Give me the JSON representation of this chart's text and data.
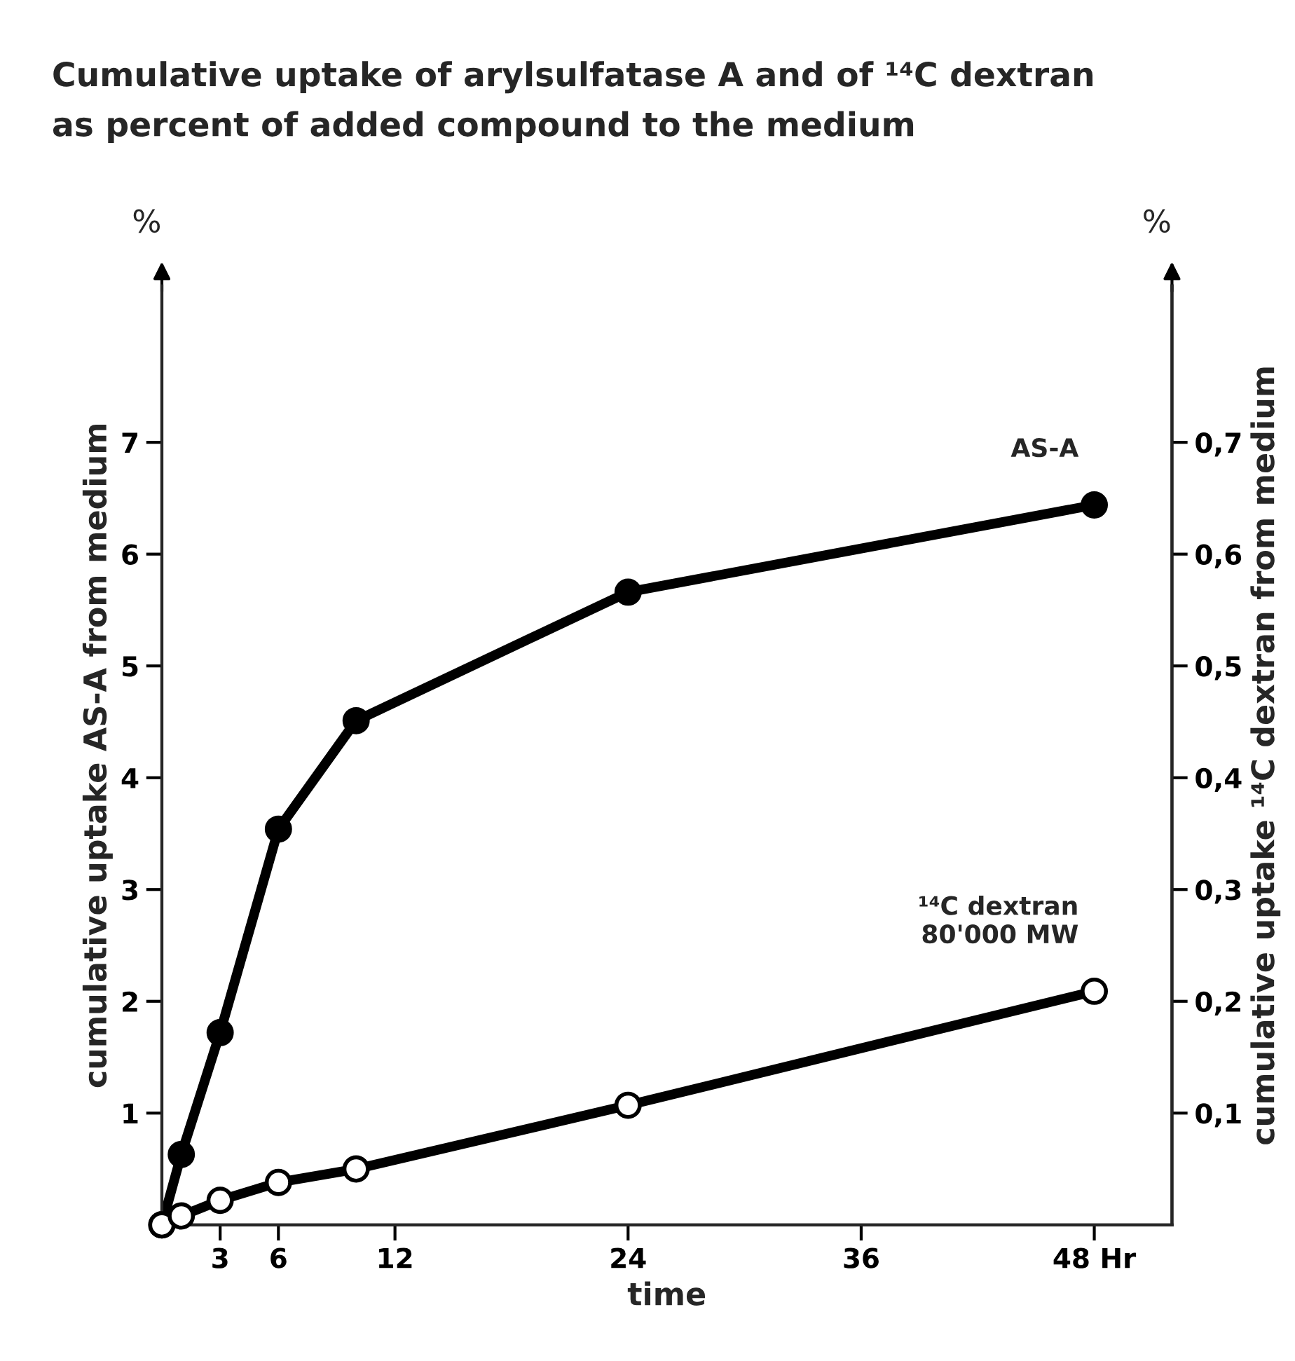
{
  "chart_data": {
    "type": "line",
    "title": "Cumulative uptake of arylsulfatase A and of ¹⁴C dextran\nas percent of added compound to the medium",
    "xlabel": "time",
    "ylabel": "cumulative uptake AS-A from medium",
    "y2label": "cumulative uptake ¹⁴C dextran from medium",
    "x": [
      0,
      1,
      3,
      6,
      10,
      24,
      48
    ],
    "series": [
      {
        "name": "AS-A",
        "color": "#000000",
        "values": [
          0,
          0.63,
          1.72,
          3.54,
          4.51,
          5.66,
          6.44
        ]
      },
      {
        "name": "¹⁴C dextran\n80'000 MW",
        "color": "#000000",
        "axis": "y2",
        "values": [
          0,
          0.008,
          0.022,
          0.038,
          0.05,
          0.107,
          0.209
        ]
      }
    ],
    "xlim": [
      0,
      52
    ],
    "xticks": [
      3,
      6,
      12,
      24,
      36,
      {
        "value": 48,
        "label": "48 Hr"
      }
    ],
    "ylim": [
      0,
      8.4
    ],
    "yticks": [
      1,
      2,
      3,
      4,
      5,
      6,
      7
    ],
    "y2lim": [
      0,
      0.84
    ],
    "y2ticks": [
      {
        "value": 0.1,
        "label": "0,1"
      },
      {
        "value": 0.2,
        "label": "0,2"
      },
      {
        "value": 0.3,
        "label": "0,3"
      },
      {
        "value": 0.4,
        "label": "0,4"
      },
      {
        "value": 0.5,
        "label": "0,5"
      },
      {
        "value": 0.6,
        "label": "0,6"
      },
      {
        "value": 0.7,
        "label": "0,7"
      }
    ],
    "annotations": [
      "%",
      "%"
    ],
    "marker": "circle",
    "line_style": "solid",
    "grid": false
  }
}
